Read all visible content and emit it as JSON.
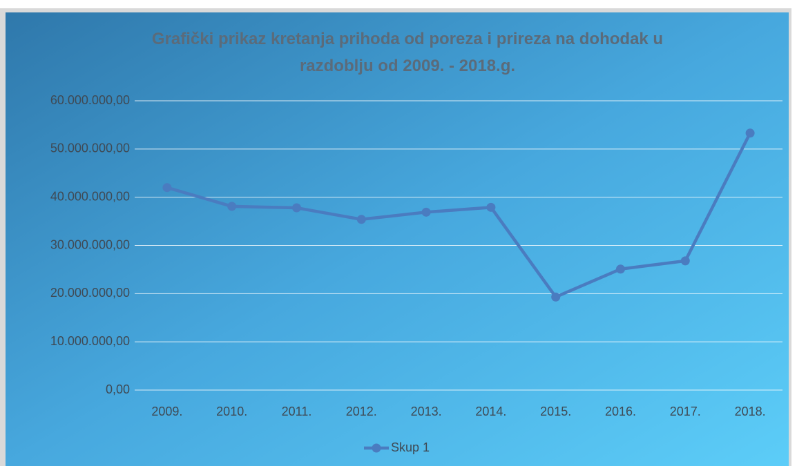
{
  "chart_data": {
    "type": "line",
    "title": "Grafički prikaz kretanja prihoda od poreza i prireza na dohodak u razdoblju od 2009. - 2018.g.",
    "categories": [
      "2009.",
      "2010.",
      "2011.",
      "2012.",
      "2013.",
      "2014.",
      "2015.",
      "2016.",
      "2017.",
      "2018."
    ],
    "series": [
      {
        "name": "Skup 1",
        "color": "#4a7cc0",
        "values": [
          42000000,
          38100000,
          37800000,
          35400000,
          36900000,
          37900000,
          19300000,
          25100000,
          26800000,
          53300000
        ]
      }
    ],
    "ylim": [
      0,
      60000000
    ],
    "yticks": [
      {
        "value": 0,
        "label": "0,00"
      },
      {
        "value": 10000000,
        "label": "10.000.000,00"
      },
      {
        "value": 20000000,
        "label": "20.000.000,00"
      },
      {
        "value": 30000000,
        "label": "30.000.000,00"
      },
      {
        "value": 40000000,
        "label": "40.000.000,00"
      },
      {
        "value": 50000000,
        "label": "50.000.000,00"
      },
      {
        "value": 60000000,
        "label": "60.000.000,00"
      }
    ],
    "grid": true,
    "legend": "bottom"
  }
}
